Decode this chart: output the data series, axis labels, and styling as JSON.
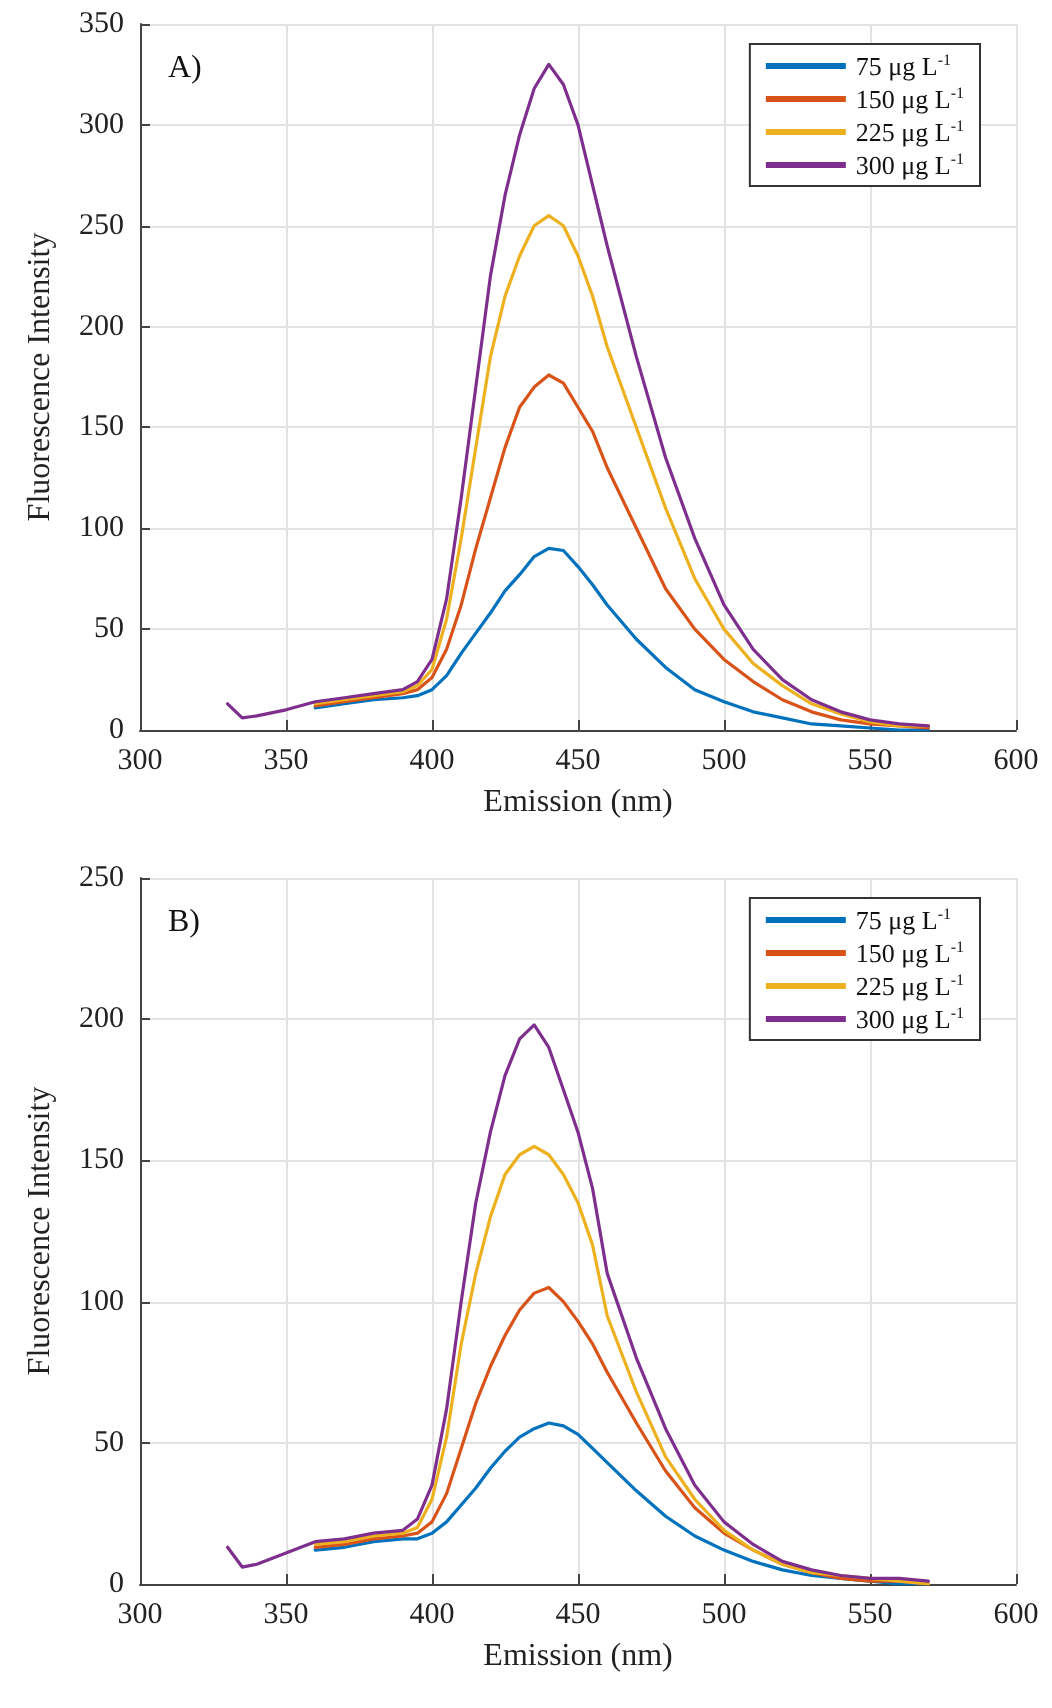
{
  "chart_data": [
    {
      "type": "line",
      "xlabel": "Emission (nm)",
      "ylabel": "Fluorescence Intensity",
      "annotations": [
        "A)"
      ],
      "xlim": [
        300,
        600
      ],
      "xticks": [
        300,
        350,
        400,
        450,
        500,
        550,
        600
      ],
      "ylim": [
        0,
        350
      ],
      "yticks": [
        0,
        50,
        100,
        150,
        200,
        250,
        300,
        350
      ],
      "grid": true,
      "legend": "top right",
      "marker": "none",
      "line_style": "solid",
      "x": [
        330,
        335,
        340,
        350,
        360,
        370,
        380,
        390,
        395,
        400,
        405,
        410,
        415,
        420,
        425,
        430,
        435,
        440,
        445,
        450,
        455,
        460,
        470,
        480,
        490,
        500,
        510,
        520,
        530,
        540,
        550,
        560,
        570
      ],
      "series": [
        {
          "name": "75 μg L$^{-1}$",
          "color": "#0072bd",
          "values": [
            null,
            null,
            null,
            null,
            11,
            13,
            15,
            16,
            17,
            20,
            27,
            38,
            48,
            58,
            69,
            77,
            86,
            90,
            89,
            81,
            72,
            62,
            45,
            31,
            20,
            14,
            9,
            6,
            3,
            2,
            1,
            0,
            0
          ]
        },
        {
          "name": "150 μg L$^{-1}$",
          "color": "#d95319",
          "values": [
            null,
            null,
            null,
            null,
            12,
            14,
            16,
            18,
            20,
            26,
            40,
            62,
            90,
            115,
            140,
            160,
            170,
            176,
            172,
            160,
            148,
            130,
            100,
            70,
            50,
            35,
            24,
            15,
            9,
            5,
            3,
            2,
            1
          ]
        },
        {
          "name": "225 μg L$^{-1}$",
          "color": "#edb120",
          "values": [
            null,
            null,
            null,
            null,
            13,
            15,
            17,
            19,
            22,
            30,
            55,
            95,
            140,
            185,
            215,
            235,
            250,
            255,
            250,
            235,
            215,
            190,
            150,
            110,
            75,
            50,
            33,
            22,
            13,
            8,
            4,
            2,
            2
          ]
        },
        {
          "name": "300 μg L$^{-1}$",
          "color": "#7e2f8e",
          "values": [
            13,
            6,
            7,
            10,
            14,
            16,
            18,
            20,
            24,
            35,
            65,
            115,
            170,
            225,
            265,
            295,
            318,
            330,
            320,
            300,
            270,
            240,
            185,
            135,
            95,
            62,
            40,
            25,
            15,
            9,
            5,
            3,
            2
          ]
        }
      ]
    },
    {
      "type": "line",
      "xlabel": "Emission (nm)",
      "ylabel": "Fluorescence Intensity",
      "annotations": [
        "B)"
      ],
      "xlim": [
        300,
        600
      ],
      "xticks": [
        300,
        350,
        400,
        450,
        500,
        550,
        600
      ],
      "ylim": [
        0,
        250
      ],
      "yticks": [
        0,
        50,
        100,
        150,
        200,
        250
      ],
      "grid": true,
      "legend": "top right",
      "marker": "none",
      "line_style": "solid",
      "x": [
        330,
        335,
        340,
        350,
        360,
        370,
        380,
        390,
        395,
        400,
        405,
        410,
        415,
        420,
        425,
        430,
        435,
        440,
        445,
        450,
        455,
        460,
        470,
        480,
        490,
        500,
        510,
        520,
        530,
        540,
        550,
        560,
        570
      ],
      "series": [
        {
          "name": "75 μg L$^{-1}$",
          "color": "#0072bd",
          "values": [
            null,
            null,
            null,
            null,
            12,
            13,
            15,
            16,
            16,
            18,
            22,
            28,
            34,
            41,
            47,
            52,
            55,
            57,
            56,
            53,
            48,
            43,
            33,
            24,
            17,
            12,
            8,
            5,
            3,
            2,
            1,
            0,
            0
          ]
        },
        {
          "name": "150 μg L$^{-1}$",
          "color": "#d95319",
          "values": [
            null,
            null,
            null,
            null,
            13,
            14,
            16,
            17,
            18,
            22,
            32,
            48,
            64,
            77,
            88,
            97,
            103,
            105,
            100,
            93,
            85,
            75,
            57,
            40,
            27,
            18,
            12,
            7,
            4,
            2,
            1,
            1,
            0
          ]
        },
        {
          "name": "225 μg L$^{-1}$",
          "color": "#edb120",
          "values": [
            null,
            null,
            null,
            null,
            14,
            15,
            17,
            18,
            20,
            30,
            52,
            85,
            110,
            130,
            145,
            152,
            155,
            152,
            145,
            135,
            120,
            95,
            68,
            45,
            30,
            19,
            12,
            7,
            4,
            3,
            2,
            1,
            0
          ]
        },
        {
          "name": "300 μg L$^{-1}$",
          "color": "#7e2f8e",
          "values": [
            13,
            6,
            7,
            11,
            15,
            16,
            18,
            19,
            23,
            35,
            62,
            100,
            135,
            160,
            180,
            193,
            198,
            190,
            175,
            160,
            140,
            110,
            80,
            55,
            35,
            22,
            14,
            8,
            5,
            3,
            2,
            2,
            1
          ]
        }
      ]
    }
  ]
}
